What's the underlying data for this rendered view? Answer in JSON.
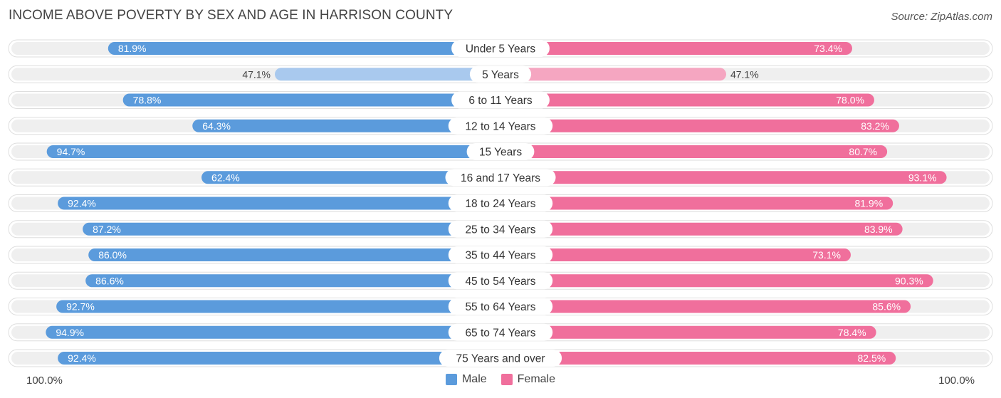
{
  "header": {
    "title": "INCOME ABOVE POVERTY BY SEX AND AGE IN HARRISON COUNTY",
    "source": "Source: ZipAtlas.com"
  },
  "axis": {
    "left_label": "100.0%",
    "right_label": "100.0%"
  },
  "legend": {
    "male_label": "Male",
    "female_label": "Female"
  },
  "colors": {
    "male": "#5b9bdc",
    "male_light": "#a9c9ee",
    "female": "#f06f9c",
    "female_light": "#f5a6c1",
    "track": "#efefef"
  },
  "chart_data": {
    "type": "bar",
    "orientation": "horizontal-diverging",
    "title": "INCOME ABOVE POVERTY BY SEX AND AGE IN HARRISON COUNTY",
    "categories": [
      "Under 5 Years",
      "5 Years",
      "6 to 11 Years",
      "12 to 14 Years",
      "15 Years",
      "16 and 17 Years",
      "18 to 24 Years",
      "25 to 34 Years",
      "35 to 44 Years",
      "45 to 54 Years",
      "55 to 64 Years",
      "65 to 74 Years",
      "75 Years and over"
    ],
    "series": [
      {
        "name": "Male",
        "values": [
          81.9,
          47.1,
          78.8,
          64.3,
          94.7,
          62.4,
          92.4,
          87.2,
          86.0,
          86.6,
          92.7,
          94.9,
          92.4
        ],
        "labels": [
          "81.9%",
          "47.1%",
          "78.8%",
          "64.3%",
          "94.7%",
          "62.4%",
          "92.4%",
          "87.2%",
          "86.0%",
          "86.6%",
          "92.7%",
          "94.9%",
          "92.4%"
        ]
      },
      {
        "name": "Female",
        "values": [
          73.4,
          47.1,
          78.0,
          83.2,
          80.7,
          93.1,
          81.9,
          83.9,
          73.1,
          90.3,
          85.6,
          78.4,
          82.5
        ],
        "labels": [
          "73.4%",
          "47.1%",
          "78.0%",
          "83.2%",
          "80.7%",
          "93.1%",
          "81.9%",
          "83.9%",
          "73.1%",
          "90.3%",
          "85.6%",
          "78.4%",
          "82.5%"
        ]
      }
    ],
    "xlim": [
      0,
      100
    ],
    "legend_position": "bottom-center"
  }
}
